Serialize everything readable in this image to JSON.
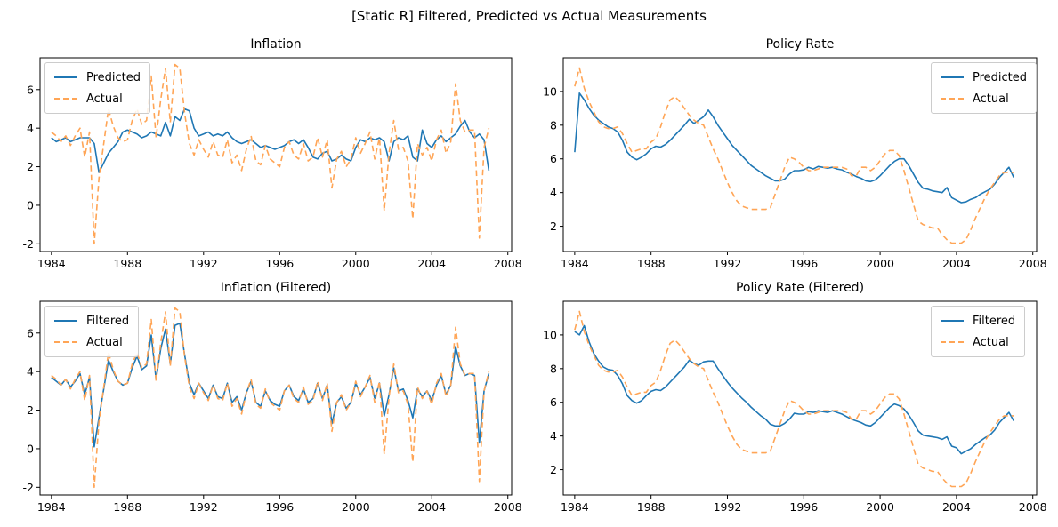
{
  "figure": {
    "suptitle": "[Static R] Filtered, Predicted vs Actual Measurements"
  },
  "colors": {
    "blue": "#1f77b4",
    "orange": "#ffa556"
  },
  "x_quarters": [
    1984,
    1984.25,
    1984.5,
    1984.75,
    1985,
    1985.25,
    1985.5,
    1985.75,
    1986,
    1986.25,
    1986.5,
    1986.75,
    1987,
    1987.25,
    1987.5,
    1987.75,
    1988,
    1988.25,
    1988.5,
    1988.75,
    1989,
    1989.25,
    1989.5,
    1989.75,
    1990,
    1990.25,
    1990.5,
    1990.75,
    1991,
    1991.25,
    1991.5,
    1991.75,
    1992,
    1992.25,
    1992.5,
    1992.75,
    1993,
    1993.25,
    1993.5,
    1993.75,
    1994,
    1994.25,
    1994.5,
    1994.75,
    1995,
    1995.25,
    1995.5,
    1995.75,
    1996,
    1996.25,
    1996.5,
    1996.75,
    1997,
    1997.25,
    1997.5,
    1997.75,
    1998,
    1998.25,
    1998.5,
    1998.75,
    1999,
    1999.25,
    1999.5,
    1999.75,
    2000,
    2000.25,
    2000.5,
    2000.75,
    2001,
    2001.25,
    2001.5,
    2001.75,
    2002,
    2002.25,
    2002.5,
    2002.75,
    2003,
    2003.25,
    2003.5,
    2003.75,
    2004,
    2004.25,
    2004.5,
    2004.75,
    2005,
    2005.25,
    2005.5,
    2005.75,
    2006,
    2006.25,
    2006.5,
    2006.75,
    2007
  ],
  "chart_data": [
    {
      "type": "line",
      "title": "Inflation",
      "x": "x_quarters",
      "xlabel": "",
      "ylabel": "",
      "xlim": [
        1983.4,
        2008.2
      ],
      "ylim": [
        -2.4,
        7.65
      ],
      "xticks": [
        1984,
        1988,
        1992,
        1996,
        2000,
        2004,
        2008
      ],
      "yticks": [
        -2,
        0,
        2,
        4,
        6
      ],
      "grid": false,
      "legend_position": "upper left",
      "series": [
        {
          "name": "Predicted",
          "color": "blue",
          "style": "solid",
          "values": [
            3.5,
            3.3,
            3.4,
            3.5,
            3.3,
            3.4,
            3.5,
            3.5,
            3.5,
            3.2,
            1.7,
            2.2,
            2.7,
            3.0,
            3.3,
            3.8,
            3.9,
            3.8,
            3.7,
            3.5,
            3.6,
            3.8,
            3.7,
            3.6,
            4.3,
            3.6,
            4.6,
            4.4,
            5.0,
            4.9,
            4.0,
            3.6,
            3.7,
            3.8,
            3.6,
            3.7,
            3.6,
            3.8,
            3.5,
            3.3,
            3.2,
            3.3,
            3.4,
            3.2,
            3.0,
            3.1,
            3.0,
            2.9,
            3.0,
            3.1,
            3.3,
            3.4,
            3.2,
            3.4,
            3.0,
            2.5,
            2.4,
            2.7,
            2.8,
            2.3,
            2.4,
            2.6,
            2.4,
            2.3,
            3.0,
            3.4,
            3.3,
            3.5,
            3.4,
            3.5,
            3.3,
            2.3,
            3.3,
            3.5,
            3.4,
            3.6,
            2.5,
            2.3,
            3.9,
            3.2,
            3.0,
            3.4,
            3.6,
            3.3,
            3.5,
            3.7,
            4.1,
            4.4,
            3.8,
            3.5,
            3.7,
            3.4,
            1.8
          ]
        },
        {
          "name": "Actual",
          "color": "orange",
          "style": "dashed",
          "values": [
            3.8,
            3.6,
            3.3,
            3.6,
            3.1,
            3.6,
            4.0,
            2.5,
            3.8,
            -2.0,
            1.4,
            3.2,
            5.0,
            4.1,
            3.5,
            3.3,
            3.4,
            4.4,
            5.0,
            4.2,
            4.4,
            6.7,
            3.5,
            5.5,
            7.1,
            4.3,
            7.3,
            7.1,
            4.8,
            3.2,
            2.6,
            3.4,
            2.9,
            2.5,
            3.3,
            2.6,
            2.5,
            3.4,
            2.2,
            2.6,
            1.8,
            2.9,
            3.6,
            2.3,
            2.1,
            3.1,
            2.4,
            2.2,
            2.0,
            3.0,
            3.3,
            2.6,
            2.4,
            3.2,
            2.3,
            2.5,
            3.5,
            2.5,
            3.4,
            0.9,
            2.4,
            2.8,
            2.0,
            2.4,
            3.5,
            2.7,
            3.2,
            3.8,
            2.4,
            3.5,
            -0.3,
            2.7,
            4.4,
            2.9,
            3.0,
            2.3,
            -0.7,
            3.2,
            2.6,
            3.0,
            2.3,
            3.4,
            3.9,
            2.7,
            3.3,
            6.3,
            4.4,
            3.8,
            3.9,
            3.9,
            -1.7,
            3.0,
            4.0
          ]
        }
      ]
    },
    {
      "type": "line",
      "title": "Policy Rate",
      "x": "x_quarters",
      "xlabel": "",
      "ylabel": "",
      "xlim": [
        1983.4,
        2008.2
      ],
      "ylim": [
        0.5,
        12.0
      ],
      "xticks": [
        1984,
        1988,
        1992,
        1996,
        2000,
        2004,
        2008
      ],
      "yticks": [
        2,
        4,
        6,
        8,
        10
      ],
      "grid": false,
      "legend_position": "upper right",
      "series": [
        {
          "name": "Predicted",
          "color": "blue",
          "style": "solid",
          "values": [
            6.4,
            9.9,
            9.5,
            9.0,
            8.6,
            8.3,
            8.1,
            7.9,
            7.8,
            7.6,
            7.1,
            6.4,
            6.1,
            5.95,
            6.1,
            6.3,
            6.6,
            6.75,
            6.7,
            6.85,
            7.1,
            7.4,
            7.7,
            8.0,
            8.35,
            8.1,
            8.3,
            8.5,
            8.9,
            8.5,
            8.0,
            7.6,
            7.2,
            6.8,
            6.5,
            6.2,
            5.9,
            5.6,
            5.4,
            5.2,
            5.0,
            4.85,
            4.7,
            4.7,
            4.8,
            5.1,
            5.3,
            5.3,
            5.35,
            5.5,
            5.4,
            5.55,
            5.5,
            5.45,
            5.5,
            5.4,
            5.35,
            5.2,
            5.1,
            4.95,
            4.85,
            4.7,
            4.65,
            4.75,
            5.0,
            5.3,
            5.6,
            5.85,
            6.0,
            6.0,
            5.6,
            5.1,
            4.6,
            4.25,
            4.2,
            4.1,
            4.05,
            4.0,
            4.3,
            3.7,
            3.55,
            3.4,
            3.45,
            3.6,
            3.7,
            3.9,
            4.05,
            4.2,
            4.5,
            4.9,
            5.2,
            5.5,
            4.9
          ]
        },
        {
          "name": "Actual",
          "color": "orange",
          "style": "dashed",
          "values": [
            10.3,
            11.4,
            10.2,
            9.4,
            8.8,
            8.2,
            7.9,
            7.8,
            7.8,
            7.9,
            7.5,
            6.9,
            6.4,
            6.5,
            6.6,
            6.6,
            7.0,
            7.2,
            7.9,
            8.8,
            9.5,
            9.7,
            9.4,
            9.0,
            8.6,
            8.3,
            8.1,
            8.0,
            7.3,
            6.6,
            6.0,
            5.3,
            4.6,
            4.0,
            3.5,
            3.2,
            3.1,
            3.0,
            3.0,
            3.0,
            3.0,
            3.1,
            3.9,
            4.7,
            5.5,
            6.1,
            6.0,
            5.8,
            5.5,
            5.3,
            5.3,
            5.4,
            5.5,
            5.5,
            5.5,
            5.5,
            5.5,
            5.4,
            5.0,
            5.0,
            5.5,
            5.5,
            5.3,
            5.5,
            5.9,
            6.3,
            6.5,
            6.5,
            6.2,
            5.3,
            4.3,
            3.3,
            2.3,
            2.1,
            2.0,
            1.9,
            1.9,
            1.5,
            1.2,
            1.0,
            1.0,
            1.0,
            1.2,
            1.8,
            2.5,
            3.1,
            3.7,
            4.2,
            4.6,
            5.0,
            5.2,
            5.2,
            5.2
          ]
        }
      ]
    },
    {
      "type": "line",
      "title": "Inflation (Filtered)",
      "x": "x_quarters",
      "xlabel": "",
      "ylabel": "",
      "xlim": [
        1983.4,
        2008.2
      ],
      "ylim": [
        -2.4,
        7.65
      ],
      "xticks": [
        1984,
        1988,
        1992,
        1996,
        2000,
        2004,
        2008
      ],
      "yticks": [
        -2,
        0,
        2,
        4,
        6
      ],
      "grid": false,
      "legend_position": "upper left",
      "series": [
        {
          "name": "Filtered",
          "color": "blue",
          "style": "solid",
          "values": [
            3.7,
            3.5,
            3.3,
            3.6,
            3.2,
            3.5,
            3.9,
            2.8,
            3.7,
            0.1,
            1.6,
            3.1,
            4.6,
            4.0,
            3.5,
            3.3,
            3.4,
            4.2,
            4.8,
            4.1,
            4.3,
            5.9,
            3.6,
            5.2,
            6.2,
            4.4,
            6.4,
            6.5,
            4.9,
            3.4,
            2.8,
            3.4,
            3.0,
            2.6,
            3.3,
            2.7,
            2.6,
            3.4,
            2.4,
            2.7,
            2.0,
            2.9,
            3.5,
            2.4,
            2.2,
            3.0,
            2.5,
            2.3,
            2.2,
            3.0,
            3.3,
            2.7,
            2.5,
            3.1,
            2.4,
            2.6,
            3.4,
            2.6,
            3.3,
            1.3,
            2.4,
            2.7,
            2.1,
            2.4,
            3.4,
            2.8,
            3.2,
            3.7,
            2.6,
            3.4,
            1.7,
            2.8,
            4.2,
            3.0,
            3.1,
            2.5,
            1.6,
            3.1,
            2.7,
            3.0,
            2.5,
            3.3,
            3.8,
            2.8,
            3.3,
            5.3,
            4.3,
            3.8,
            3.9,
            3.8,
            0.3,
            3.0,
            3.9
          ]
        },
        {
          "name": "Actual",
          "color": "orange",
          "style": "dashed",
          "values": [
            3.8,
            3.6,
            3.3,
            3.6,
            3.1,
            3.6,
            4.0,
            2.5,
            3.8,
            -2.0,
            1.4,
            3.2,
            5.0,
            4.1,
            3.5,
            3.3,
            3.4,
            4.4,
            5.0,
            4.2,
            4.4,
            6.7,
            3.5,
            5.5,
            7.1,
            4.3,
            7.3,
            7.1,
            4.8,
            3.2,
            2.6,
            3.4,
            2.9,
            2.5,
            3.3,
            2.6,
            2.5,
            3.4,
            2.2,
            2.6,
            1.8,
            2.9,
            3.6,
            2.3,
            2.1,
            3.1,
            2.4,
            2.2,
            2.0,
            3.0,
            3.3,
            2.6,
            2.4,
            3.2,
            2.3,
            2.5,
            3.5,
            2.5,
            3.4,
            0.9,
            2.4,
            2.8,
            2.0,
            2.4,
            3.5,
            2.7,
            3.2,
            3.8,
            2.4,
            3.5,
            -0.3,
            2.7,
            4.4,
            2.9,
            3.0,
            2.3,
            -0.7,
            3.2,
            2.6,
            3.0,
            2.3,
            3.4,
            3.9,
            2.7,
            3.3,
            6.3,
            4.4,
            3.8,
            3.9,
            3.9,
            -1.7,
            3.0,
            4.0
          ]
        }
      ]
    },
    {
      "type": "line",
      "title": "Policy Rate (Filtered)",
      "x": "x_quarters",
      "xlabel": "",
      "ylabel": "",
      "xlim": [
        1983.4,
        2008.2
      ],
      "ylim": [
        0.5,
        12.0
      ],
      "xticks": [
        1984,
        1988,
        1992,
        1996,
        2000,
        2004,
        2008
      ],
      "yticks": [
        2,
        4,
        6,
        8,
        10
      ],
      "grid": false,
      "legend_position": "upper right",
      "series": [
        {
          "name": "Filtered",
          "color": "blue",
          "style": "solid",
          "values": [
            10.2,
            10.0,
            10.55,
            9.6,
            8.9,
            8.45,
            8.1,
            7.95,
            7.9,
            7.6,
            7.1,
            6.4,
            6.1,
            5.95,
            6.1,
            6.4,
            6.65,
            6.75,
            6.7,
            6.9,
            7.2,
            7.5,
            7.8,
            8.1,
            8.5,
            8.3,
            8.2,
            8.4,
            8.45,
            8.45,
            8.0,
            7.6,
            7.2,
            6.85,
            6.55,
            6.25,
            6.0,
            5.7,
            5.45,
            5.2,
            5.0,
            4.7,
            4.6,
            4.6,
            4.75,
            5.0,
            5.35,
            5.3,
            5.3,
            5.45,
            5.4,
            5.5,
            5.45,
            5.4,
            5.5,
            5.4,
            5.3,
            5.15,
            5.0,
            4.9,
            4.8,
            4.65,
            4.6,
            4.8,
            5.1,
            5.4,
            5.7,
            5.9,
            5.8,
            5.6,
            5.25,
            4.8,
            4.3,
            4.05,
            4.0,
            3.95,
            3.9,
            3.8,
            3.95,
            3.4,
            3.3,
            2.95,
            3.1,
            3.25,
            3.5,
            3.7,
            3.9,
            4.05,
            4.35,
            4.8,
            5.1,
            5.4,
            4.9
          ]
        },
        {
          "name": "Actual",
          "color": "orange",
          "style": "dashed",
          "values": [
            10.3,
            11.4,
            10.2,
            9.4,
            8.8,
            8.2,
            7.9,
            7.8,
            7.8,
            7.9,
            7.5,
            6.9,
            6.4,
            6.5,
            6.6,
            6.6,
            7.0,
            7.2,
            7.9,
            8.8,
            9.5,
            9.7,
            9.4,
            9.0,
            8.6,
            8.3,
            8.1,
            8.0,
            7.3,
            6.6,
            6.0,
            5.3,
            4.6,
            4.0,
            3.5,
            3.2,
            3.1,
            3.0,
            3.0,
            3.0,
            3.0,
            3.1,
            3.9,
            4.7,
            5.5,
            6.1,
            6.0,
            5.8,
            5.5,
            5.3,
            5.3,
            5.4,
            5.5,
            5.5,
            5.5,
            5.5,
            5.5,
            5.4,
            5.0,
            5.0,
            5.5,
            5.5,
            5.3,
            5.5,
            5.9,
            6.3,
            6.5,
            6.5,
            6.2,
            5.3,
            4.3,
            3.3,
            2.3,
            2.1,
            2.0,
            1.9,
            1.9,
            1.5,
            1.2,
            1.0,
            1.0,
            1.0,
            1.2,
            1.8,
            2.5,
            3.1,
            3.7,
            4.2,
            4.6,
            5.0,
            5.2,
            5.2,
            5.2
          ]
        }
      ]
    }
  ]
}
